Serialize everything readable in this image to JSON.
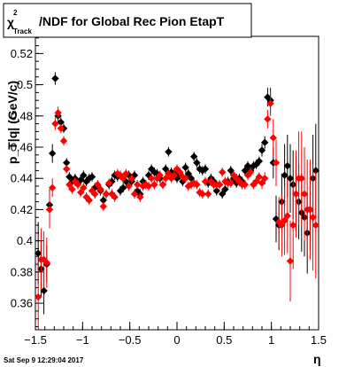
{
  "page": {
    "title": "/NDF for Global Rec Pion EtapT",
    "title_symbol": "χ",
    "title_superscript": "2",
    "title_subscript": "Track",
    "timestamp": "Sat Sep  9 12:29:04 2017"
  },
  "colors": {
    "series_1": "#000000",
    "series_2": "#ff0000",
    "frame": "#000000",
    "background": "#ffffff"
  },
  "chart_data": {
    "type": "scatter",
    "title": "χ²_Track/NDF for Global Rec Pion EtapT",
    "xlabel": "η",
    "ylabel": "p_T|q| (GeV/c)",
    "xlim": [
      -1.5,
      1.5
    ],
    "ylim": [
      0.343,
      0.531
    ],
    "xticks": [
      -1.5,
      -1,
      -0.5,
      0,
      0.5,
      1,
      1.5
    ],
    "xtick_labels": [
      "−1.5",
      "−1",
      "−0.5",
      "0",
      "0.5",
      "1",
      "1.5"
    ],
    "yticks": [
      0.36,
      0.38,
      0.4,
      0.42,
      0.44,
      0.46,
      0.48,
      0.5,
      0.52
    ],
    "ytick_labels": [
      "0.36",
      "0.38",
      "0.4",
      "0.42",
      "0.44",
      "0.46",
      "0.48",
      "0.5",
      "0.52"
    ],
    "grid": false,
    "series": [
      {
        "color": "#000000",
        "x": [
          -1.47,
          -1.44,
          -1.41,
          -1.38,
          -1.35,
          -1.32,
          -1.29,
          -1.26,
          -1.23,
          -1.2,
          -1.17,
          -1.14,
          -1.11,
          -1.08,
          -1.05,
          -1.02,
          -0.99,
          -0.96,
          -0.93,
          -0.9,
          -0.87,
          -0.84,
          -0.81,
          -0.78,
          -0.75,
          -0.72,
          -0.69,
          -0.66,
          -0.63,
          -0.6,
          -0.57,
          -0.54,
          -0.51,
          -0.48,
          -0.45,
          -0.42,
          -0.39,
          -0.36,
          -0.33,
          -0.3,
          -0.27,
          -0.24,
          -0.21,
          -0.18,
          -0.15,
          -0.12,
          -0.09,
          -0.06,
          -0.03,
          0.0,
          0.03,
          0.06,
          0.09,
          0.12,
          0.15,
          0.18,
          0.21,
          0.24,
          0.27,
          0.3,
          0.33,
          0.36,
          0.39,
          0.42,
          0.45,
          0.48,
          0.51,
          0.54,
          0.57,
          0.6,
          0.63,
          0.66,
          0.69,
          0.72,
          0.75,
          0.78,
          0.81,
          0.84,
          0.87,
          0.9,
          0.93,
          0.96,
          0.99,
          1.02,
          1.05,
          1.08,
          1.11,
          1.14,
          1.17,
          1.2,
          1.23,
          1.26,
          1.29,
          1.32,
          1.35,
          1.38,
          1.41,
          1.44,
          1.47
        ],
        "y": [
          0.392,
          0.382,
          0.368,
          0.385,
          0.423,
          0.456,
          0.504,
          0.48,
          0.476,
          0.472,
          0.45,
          0.441,
          0.438,
          0.44,
          0.437,
          0.439,
          0.442,
          0.438,
          0.44,
          0.441,
          0.434,
          0.435,
          0.432,
          0.426,
          0.43,
          0.436,
          0.438,
          0.442,
          0.441,
          0.432,
          0.434,
          0.438,
          0.442,
          0.438,
          0.442,
          0.432,
          0.43,
          0.438,
          0.436,
          0.442,
          0.446,
          0.444,
          0.443,
          0.44,
          0.436,
          0.446,
          0.457,
          0.444,
          0.443,
          0.44,
          0.442,
          0.438,
          0.447,
          0.443,
          0.44,
          0.454,
          0.45,
          0.446,
          0.445,
          0.446,
          0.437,
          0.44,
          0.438,
          0.432,
          0.436,
          0.43,
          0.433,
          0.438,
          0.445,
          0.44,
          0.437,
          0.44,
          0.438,
          0.445,
          0.448,
          0.445,
          0.448,
          0.449,
          0.451,
          0.458,
          0.463,
          0.492,
          0.49,
          0.45,
          0.414,
          0.41,
          0.425,
          0.442,
          0.448,
          0.44,
          0.436,
          0.43,
          0.425,
          0.418,
          0.415,
          0.405,
          0.42,
          0.44,
          0.445
        ],
        "yerr": [
          0.02,
          0.018,
          0.015,
          0.012,
          0.01,
          0.006,
          0.004,
          0.004,
          0.003,
          0.003,
          0.003,
          0.003,
          0.003,
          0.003,
          0.003,
          0.003,
          0.003,
          0.003,
          0.003,
          0.003,
          0.003,
          0.003,
          0.003,
          0.003,
          0.003,
          0.003,
          0.003,
          0.003,
          0.003,
          0.003,
          0.003,
          0.003,
          0.003,
          0.003,
          0.003,
          0.003,
          0.003,
          0.003,
          0.003,
          0.003,
          0.003,
          0.003,
          0.003,
          0.003,
          0.003,
          0.003,
          0.003,
          0.003,
          0.003,
          0.003,
          0.003,
          0.003,
          0.003,
          0.003,
          0.003,
          0.003,
          0.003,
          0.003,
          0.003,
          0.003,
          0.003,
          0.003,
          0.003,
          0.003,
          0.003,
          0.003,
          0.003,
          0.003,
          0.003,
          0.003,
          0.003,
          0.003,
          0.003,
          0.003,
          0.003,
          0.003,
          0.003,
          0.003,
          0.003,
          0.004,
          0.004,
          0.006,
          0.008,
          0.01,
          0.015,
          0.016,
          0.018,
          0.02,
          0.02,
          0.022,
          0.022,
          0.024,
          0.024,
          0.025,
          0.025,
          0.026,
          0.026,
          0.028,
          0.03
        ]
      },
      {
        "color": "#ff0000",
        "x": [
          -1.47,
          -1.44,
          -1.41,
          -1.38,
          -1.35,
          -1.32,
          -1.29,
          -1.26,
          -1.23,
          -1.2,
          -1.17,
          -1.14,
          -1.11,
          -1.08,
          -1.05,
          -1.02,
          -0.99,
          -0.96,
          -0.93,
          -0.9,
          -0.87,
          -0.84,
          -0.81,
          -0.78,
          -0.75,
          -0.72,
          -0.69,
          -0.66,
          -0.63,
          -0.6,
          -0.57,
          -0.54,
          -0.51,
          -0.48,
          -0.45,
          -0.42,
          -0.39,
          -0.36,
          -0.33,
          -0.3,
          -0.27,
          -0.24,
          -0.21,
          -0.18,
          -0.15,
          -0.12,
          -0.09,
          -0.06,
          -0.03,
          0.0,
          0.03,
          0.06,
          0.09,
          0.12,
          0.15,
          0.18,
          0.21,
          0.24,
          0.27,
          0.3,
          0.33,
          0.36,
          0.39,
          0.42,
          0.45,
          0.48,
          0.51,
          0.54,
          0.57,
          0.6,
          0.63,
          0.66,
          0.69,
          0.72,
          0.75,
          0.78,
          0.81,
          0.84,
          0.87,
          0.9,
          0.93,
          0.96,
          0.99,
          1.02,
          1.05,
          1.08,
          1.11,
          1.14,
          1.17,
          1.2,
          1.23,
          1.26,
          1.29,
          1.32,
          1.35,
          1.38,
          1.41,
          1.44,
          1.47
        ],
        "y": [
          0.364,
          0.388,
          0.388,
          0.386,
          0.42,
          0.434,
          0.475,
          0.482,
          0.472,
          0.464,
          0.446,
          0.436,
          0.433,
          0.438,
          0.436,
          0.431,
          0.434,
          0.428,
          0.426,
          0.432,
          0.43,
          0.436,
          0.433,
          0.422,
          0.43,
          0.437,
          0.43,
          0.428,
          0.443,
          0.442,
          0.44,
          0.443,
          0.435,
          0.44,
          0.43,
          0.436,
          0.428,
          0.435,
          0.436,
          0.435,
          0.44,
          0.436,
          0.44,
          0.442,
          0.436,
          0.44,
          0.443,
          0.44,
          0.442,
          0.446,
          0.444,
          0.441,
          0.44,
          0.435,
          0.436,
          0.437,
          0.436,
          0.431,
          0.43,
          0.438,
          0.43,
          0.438,
          0.436,
          0.436,
          0.436,
          0.444,
          0.438,
          0.437,
          0.437,
          0.442,
          0.44,
          0.438,
          0.436,
          0.436,
          0.442,
          0.444,
          0.436,
          0.438,
          0.441,
          0.437,
          0.44,
          0.478,
          0.488,
          0.466,
          0.45,
          0.412,
          0.41,
          0.413,
          0.416,
          0.387,
          0.41,
          0.43,
          0.44,
          0.44,
          0.43,
          0.42,
          0.42,
          0.415,
          0.41
        ],
        "yerr": [
          0.022,
          0.02,
          0.018,
          0.016,
          0.012,
          0.006,
          0.004,
          0.004,
          0.003,
          0.003,
          0.003,
          0.003,
          0.003,
          0.003,
          0.003,
          0.003,
          0.003,
          0.003,
          0.003,
          0.003,
          0.003,
          0.003,
          0.003,
          0.003,
          0.003,
          0.003,
          0.003,
          0.003,
          0.003,
          0.003,
          0.003,
          0.003,
          0.003,
          0.003,
          0.003,
          0.003,
          0.003,
          0.003,
          0.003,
          0.003,
          0.003,
          0.003,
          0.003,
          0.003,
          0.003,
          0.003,
          0.003,
          0.003,
          0.003,
          0.003,
          0.003,
          0.003,
          0.003,
          0.003,
          0.003,
          0.003,
          0.003,
          0.003,
          0.003,
          0.003,
          0.003,
          0.003,
          0.003,
          0.003,
          0.003,
          0.003,
          0.003,
          0.003,
          0.003,
          0.003,
          0.003,
          0.003,
          0.003,
          0.003,
          0.003,
          0.003,
          0.003,
          0.003,
          0.003,
          0.004,
          0.004,
          0.006,
          0.008,
          0.012,
          0.015,
          0.016,
          0.02,
          0.022,
          0.024,
          0.026,
          0.028,
          0.028,
          0.03,
          0.03,
          0.03,
          0.032,
          0.032,
          0.034,
          0.034
        ]
      }
    ]
  }
}
